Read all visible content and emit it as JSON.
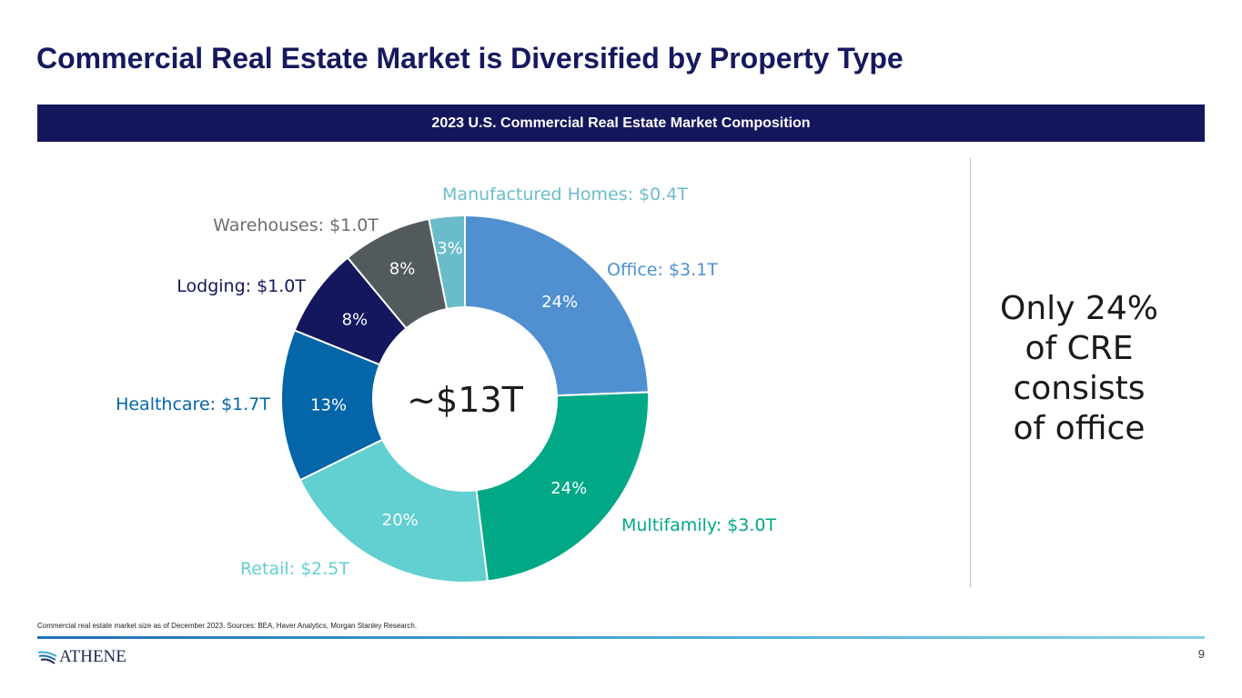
{
  "slide": {
    "title": "Commercial Real Estate Market is Diversified by Property Type",
    "banner": "2023 U.S. Commercial Real Estate Market Composition",
    "callout": [
      "Only 24%",
      "of CRE",
      "consists",
      "of office"
    ],
    "footnote": "Commercial real estate market size as of December 2023. Sources: BEA, Haver Analytics, Morgan Stanley Research.",
    "logo_text": "ATHENE",
    "logo_icon": "athene-swoosh-icon",
    "page_number": "9"
  },
  "chart_data": {
    "type": "pie",
    "donut": true,
    "center_label": "~$13T",
    "slices": [
      {
        "category": "Office",
        "label": "Office:  $3.1T",
        "percent_label": "24%",
        "value": 3.1,
        "color": "#5090d0"
      },
      {
        "category": "Multifamily",
        "label": "Multifamily: $3.0T",
        "percent_label": "24%",
        "value": 3.0,
        "color": "#00a886"
      },
      {
        "category": "Retail",
        "label": "Retail: $2.5T",
        "percent_label": "20%",
        "value": 2.5,
        "color": "#62cfd0"
      },
      {
        "category": "Healthcare",
        "label": "Healthcare: $1.7T",
        "percent_label": "13%",
        "value": 1.7,
        "color": "#0565a9"
      },
      {
        "category": "Lodging",
        "label": "Lodging:  $1.0T",
        "percent_label": "8%",
        "value": 1.0,
        "color": "#14175d"
      },
      {
        "category": "Warehouses",
        "label": "Warehouses: $1.0T",
        "percent_label": "8%",
        "value": 1.0,
        "color": "#535a5e"
      },
      {
        "category": "Manufactured Homes",
        "label": "Manufactured Homes:  $0.4T",
        "percent_label": "3%",
        "value": 0.4,
        "color": "#6bbccb"
      }
    ],
    "label_colors": [
      "#5090d0",
      "#00a886",
      "#62cfd0",
      "#0565a9",
      "#14175d",
      "#6b6f72",
      "#6bbccb"
    ],
    "legend": "none (direct labels)"
  }
}
